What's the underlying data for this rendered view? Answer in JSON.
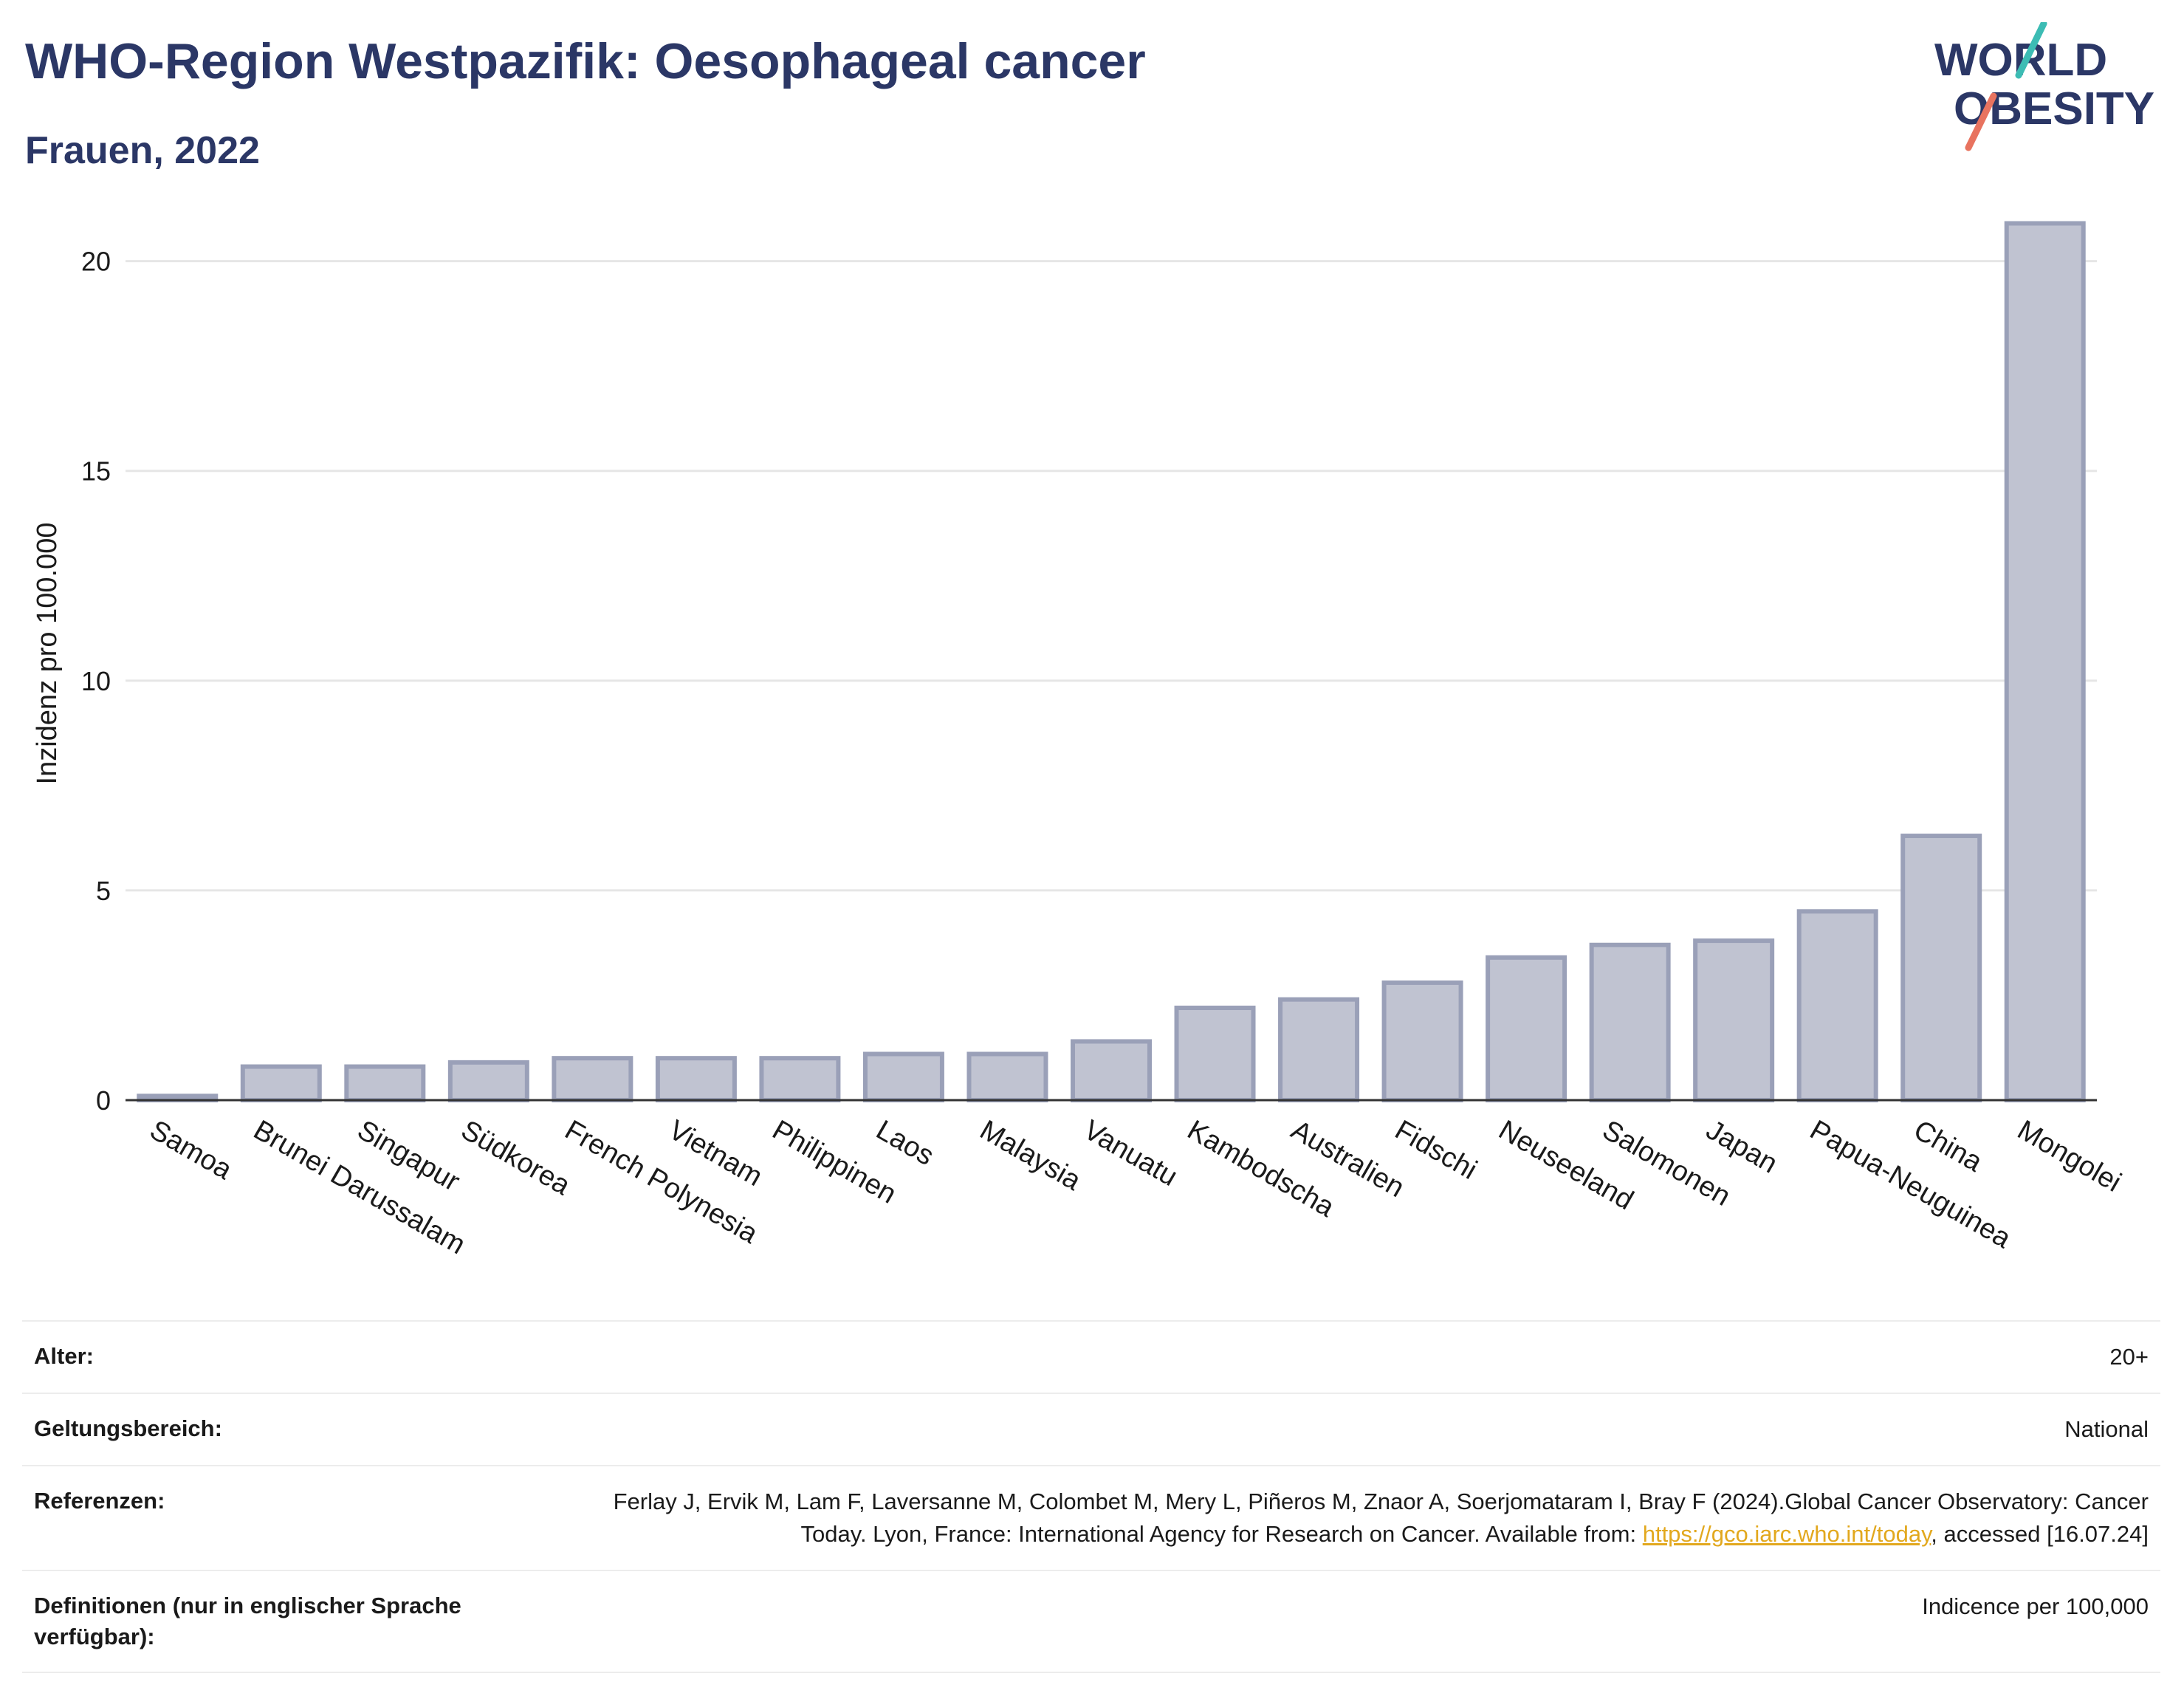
{
  "header": {
    "title": "WHO-Region Westpazifik: Oesophageal cancer",
    "subtitle": "Frauen, 2022"
  },
  "logo": {
    "line1": "WORLD",
    "line2": "OBESITY",
    "accent_colors": [
      "#3cbcb4",
      "#e8735f"
    ],
    "text_color": "#2b3766"
  },
  "chart_data": {
    "type": "bar",
    "title": "WHO-Region Westpazifik: Oesophageal cancer",
    "subtitle": "Frauen, 2022",
    "ylabel": "Inzidenz pro 100.000",
    "xlabel": "",
    "ylim": [
      0,
      22
    ],
    "yticks": [
      0,
      5,
      10,
      15,
      20
    ],
    "grid": true,
    "bar_fill": "#c0c3d1",
    "bar_stroke": "#9aa0b8",
    "categories": [
      "Samoa",
      "Brunei Darussalam",
      "Singapur",
      "Südkorea",
      "French Polynesia",
      "Vietnam",
      "Philippinen",
      "Laos",
      "Malaysia",
      "Vanuatu",
      "Kambodscha",
      "Australien",
      "Fidschi",
      "Neuseeland",
      "Salomonen",
      "Japan",
      "Papua-Neuguinea",
      "China",
      "Mongolei"
    ],
    "values": [
      0.1,
      0.8,
      0.8,
      0.9,
      1.0,
      1.0,
      1.0,
      1.1,
      1.1,
      1.4,
      2.2,
      2.4,
      2.8,
      3.4,
      3.7,
      3.8,
      4.5,
      6.3,
      20.9
    ]
  },
  "info": [
    {
      "label": "Alter:",
      "value": "20+"
    },
    {
      "label": "Geltungsbereich:",
      "value": "National"
    },
    {
      "label": "Referenzen:",
      "value_pre": "Ferlay J, Ervik M, Lam F, Laversanne M, Colombet M, Mery L, Piñeros M, Znaor A, Soerjomataram I, Bray F (2024).Global Cancer Observatory: Cancer Today. Lyon, France: International Agency for Research on Cancer. Available from: ",
      "link": "https://gco.iarc.who.int/today",
      "value_post": ", accessed [16.07.24]"
    },
    {
      "label": "Definitionen (nur in englischer Sprache verfügbar):",
      "value": "Indicence per 100,000"
    }
  ]
}
